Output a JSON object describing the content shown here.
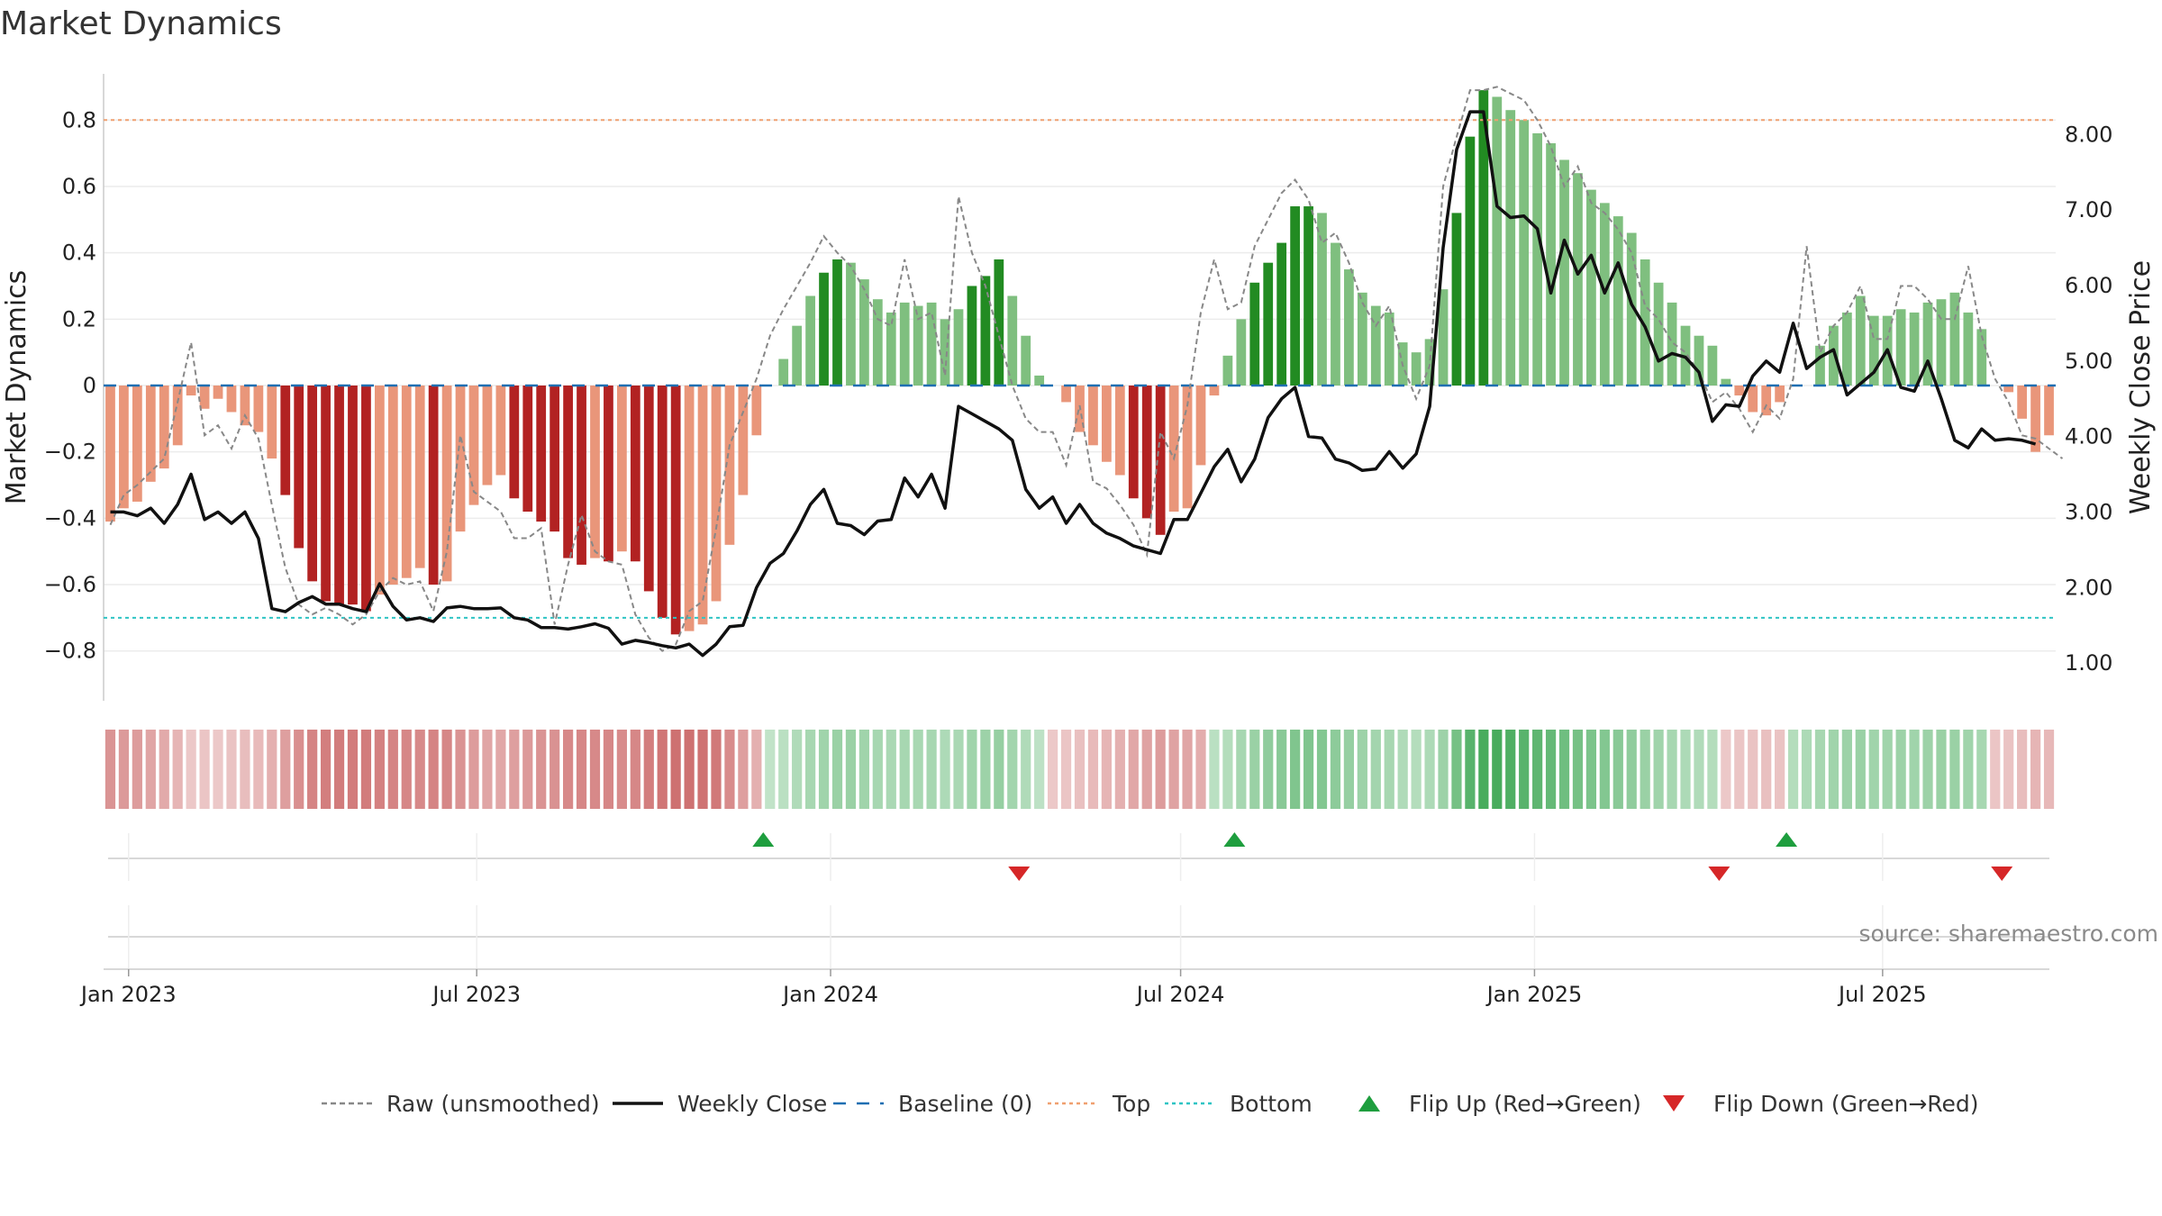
{
  "chart_data": {
    "type": "bar",
    "title": "Market Dynamics",
    "ylabel_left": "Market Dynamics",
    "ylabel_right": "Weekly Close Price",
    "source": "source: sharemaestro.com",
    "ylim_left": [
      -0.95,
      0.95
    ],
    "ylim_right": [
      0.5,
      8.85
    ],
    "yticks_left": [
      "0.8",
      "0.6",
      "0.4",
      "0.2",
      "0",
      "−0.2",
      "−0.4",
      "−0.6",
      "−0.8"
    ],
    "yticks_right": [
      "8.00",
      "7.00",
      "6.00",
      "5.00",
      "4.00",
      "3.00",
      "2.00",
      "1.00"
    ],
    "x_start": "2022-12-19",
    "x_end": "2025-09-29",
    "x_ticks": [
      {
        "date": "2023-01-01",
        "label": "Jan 2023"
      },
      {
        "date": "2023-07-01",
        "label": "Jul 2023"
      },
      {
        "date": "2024-01-01",
        "label": "Jan 2024"
      },
      {
        "date": "2024-07-01",
        "label": "Jul 2024"
      },
      {
        "date": "2025-01-01",
        "label": "Jan 2025"
      },
      {
        "date": "2025-07-01",
        "label": "Jul 2025"
      }
    ],
    "top_line": 0.8,
    "bottom_line": -0.7,
    "baseline": 0,
    "grid": true,
    "legend_position": "bottom",
    "legend": [
      {
        "label": "Raw (unsmoothed)",
        "kind": "dashed-line",
        "color": "#888888"
      },
      {
        "label": "Weekly Close",
        "kind": "line",
        "color": "#111111"
      },
      {
        "label": "Baseline (0)",
        "kind": "dash-line",
        "color": "#1f6fb2"
      },
      {
        "label": "Top",
        "kind": "dotted-line",
        "color": "#f0a070"
      },
      {
        "label": "Bottom",
        "kind": "dotted-line",
        "color": "#2ec4c4"
      },
      {
        "label": "Flip Up (Red→Green)",
        "kind": "triangle-up",
        "color": "#1e9e3e"
      },
      {
        "label": "Flip Down (Green→Red)",
        "kind": "triangle-down",
        "color": "#d62728"
      }
    ],
    "colors": {
      "strong_red": "#b22222",
      "light_red": "#e9967a",
      "strong_green": "#228b22",
      "light_green": "#7fbf7f",
      "raw": "#888888",
      "close": "#111111",
      "baseline": "#1f6fb2",
      "top": "#f0a070",
      "bottom": "#2ec4c4",
      "flip_up": "#1e9e3e",
      "flip_down": "#d62728"
    },
    "bars": [
      -0.41,
      -0.37,
      -0.35,
      -0.29,
      -0.25,
      -0.18,
      -0.03,
      -0.07,
      -0.04,
      -0.08,
      -0.12,
      -0.14,
      -0.22,
      -0.33,
      -0.49,
      -0.59,
      -0.65,
      -0.66,
      -0.66,
      -0.68,
      -0.63,
      -0.6,
      -0.58,
      -0.55,
      -0.6,
      -0.59,
      -0.44,
      -0.36,
      -0.3,
      -0.27,
      -0.34,
      -0.38,
      -0.41,
      -0.44,
      -0.52,
      -0.54,
      -0.52,
      -0.53,
      -0.5,
      -0.53,
      -0.62,
      -0.7,
      -0.75,
      -0.74,
      -0.72,
      -0.65,
      -0.48,
      -0.33,
      -0.15,
      0,
      0.08,
      0.18,
      0.27,
      0.34,
      0.38,
      0.37,
      0.32,
      0.26,
      0.22,
      0.25,
      0.24,
      0.25,
      0.2,
      0.23,
      0.3,
      0.33,
      0.38,
      0.27,
      0.15,
      0.03,
      0,
      -0.05,
      -0.14,
      -0.18,
      -0.23,
      -0.27,
      -0.34,
      -0.4,
      -0.45,
      -0.38,
      -0.37,
      -0.24,
      -0.03,
      0.09,
      0.2,
      0.31,
      0.37,
      0.43,
      0.54,
      0.54,
      0.52,
      0.43,
      0.35,
      0.28,
      0.24,
      0.22,
      0.13,
      0.1,
      0.14,
      0.29,
      0.52,
      0.75,
      0.89,
      0.87,
      0.83,
      0.8,
      0.76,
      0.73,
      0.68,
      0.64,
      0.59,
      0.55,
      0.51,
      0.46,
      0.38,
      0.31,
      0.25,
      0.18,
      0.15,
      0.12,
      0.02,
      -0.03,
      -0.08,
      -0.09,
      -0.05,
      0,
      0,
      0.12,
      0.18,
      0.22,
      0.27,
      0.21,
      0.21,
      0.23,
      0.22,
      0.25,
      0.26,
      0.28,
      0.22,
      0.17,
      0,
      -0.02,
      -0.1,
      -0.2,
      -0.15
    ],
    "raw": [
      -0.42,
      -0.33,
      -0.3,
      -0.26,
      -0.22,
      -0.05,
      0.13,
      -0.15,
      -0.12,
      -0.19,
      -0.09,
      -0.16,
      -0.36,
      -0.55,
      -0.66,
      -0.69,
      -0.67,
      -0.69,
      -0.72,
      -0.69,
      -0.62,
      -0.58,
      -0.6,
      -0.59,
      -0.68,
      -0.5,
      -0.15,
      -0.32,
      -0.35,
      -0.38,
      -0.46,
      -0.46,
      -0.43,
      -0.72,
      -0.54,
      -0.39,
      -0.5,
      -0.53,
      -0.54,
      -0.69,
      -0.76,
      -0.8,
      -0.78,
      -0.68,
      -0.65,
      -0.43,
      -0.18,
      -0.08,
      0.02,
      0.15,
      0.23,
      0.3,
      0.37,
      0.45,
      0.4,
      0.36,
      0.29,
      0.2,
      0.18,
      0.38,
      0.2,
      0.22,
      0.03,
      0.57,
      0.4,
      0.3,
      0.15,
      0.0,
      -0.1,
      -0.14,
      -0.14,
      -0.24,
      -0.06,
      -0.29,
      -0.31,
      -0.36,
      -0.42,
      -0.51,
      -0.14,
      -0.22,
      -0.06,
      0.22,
      0.38,
      0.23,
      0.25,
      0.42,
      0.5,
      0.58,
      0.62,
      0.56,
      0.43,
      0.46,
      0.37,
      0.25,
      0.18,
      0.24,
      0.06,
      -0.04,
      0.06,
      0.6,
      0.75,
      0.89,
      0.89,
      0.9,
      0.88,
      0.86,
      0.8,
      0.72,
      0.6,
      0.66,
      0.55,
      0.52,
      0.47,
      0.4,
      0.24,
      0.2,
      0.13,
      0.1,
      0.04,
      -0.05,
      -0.02,
      -0.07,
      -0.14,
      -0.06,
      -0.1,
      0.02,
      0.42,
      0.1,
      0.18,
      0.22,
      0.3,
      0.14,
      0.14,
      0.3,
      0.3,
      0.26,
      0.2,
      0.2,
      0.36,
      0.15,
      0.02,
      -0.05,
      -0.15,
      -0.16,
      -0.19,
      -0.22
    ],
    "close": [
      3.0,
      3.0,
      2.95,
      3.05,
      2.85,
      3.1,
      3.5,
      2.9,
      3.0,
      2.85,
      3.0,
      2.65,
      1.72,
      1.68,
      1.8,
      1.88,
      1.78,
      1.78,
      1.72,
      1.68,
      2.05,
      1.75,
      1.57,
      1.6,
      1.55,
      1.73,
      1.75,
      1.72,
      1.72,
      1.73,
      1.6,
      1.57,
      1.47,
      1.47,
      1.45,
      1.48,
      1.52,
      1.46,
      1.25,
      1.3,
      1.27,
      1.23,
      1.2,
      1.25,
      1.1,
      1.25,
      1.48,
      1.5,
      2.0,
      2.32,
      2.45,
      2.75,
      3.1,
      3.3,
      2.85,
      2.82,
      2.7,
      2.88,
      2.9,
      3.45,
      3.2,
      3.5,
      3.05,
      4.4,
      4.3,
      4.2,
      4.1,
      3.95,
      3.3,
      3.05,
      3.2,
      2.85,
      3.1,
      2.85,
      2.72,
      2.65,
      2.55,
      2.5,
      2.45,
      2.9,
      2.9,
      3.25,
      3.6,
      3.83,
      3.4,
      3.7,
      4.25,
      4.5,
      4.65,
      4.0,
      3.98,
      3.7,
      3.65,
      3.55,
      3.57,
      3.8,
      3.58,
      3.77,
      4.4,
      6.5,
      7.8,
      8.3,
      8.3,
      7.05,
      6.9,
      6.92,
      6.75,
      5.9,
      6.6,
      6.15,
      6.4,
      5.9,
      6.3,
      5.75,
      5.45,
      5.0,
      5.1,
      5.05,
      4.85,
      4.2,
      4.42,
      4.4,
      4.8,
      5.0,
      4.85,
      5.5,
      4.9,
      5.05,
      5.15,
      4.55,
      4.7,
      4.85,
      5.15,
      4.65,
      4.6,
      5.0,
      4.5,
      3.95,
      3.85,
      4.1,
      3.95,
      3.97,
      3.95,
      3.9
    ],
    "heat_values": [
      -0.5,
      -0.46,
      -0.44,
      -0.38,
      -0.34,
      -0.26,
      -0.12,
      -0.14,
      -0.12,
      -0.16,
      -0.2,
      -0.22,
      -0.3,
      -0.42,
      -0.54,
      -0.62,
      -0.66,
      -0.68,
      -0.68,
      -0.68,
      -0.64,
      -0.62,
      -0.6,
      -0.58,
      -0.62,
      -0.6,
      -0.5,
      -0.44,
      -0.38,
      -0.36,
      -0.42,
      -0.46,
      -0.5,
      -0.52,
      -0.58,
      -0.6,
      -0.58,
      -0.6,
      -0.56,
      -0.6,
      -0.66,
      -0.72,
      -0.76,
      -0.76,
      -0.74,
      -0.7,
      -0.56,
      -0.42,
      -0.3,
      0.1,
      0.14,
      0.2,
      0.26,
      0.3,
      0.34,
      0.34,
      0.3,
      0.26,
      0.24,
      0.26,
      0.25,
      0.26,
      0.22,
      0.24,
      0.3,
      0.32,
      0.36,
      0.28,
      0.2,
      0.12,
      -0.12,
      -0.14,
      -0.18,
      -0.22,
      -0.26,
      -0.3,
      -0.36,
      -0.4,
      -0.44,
      -0.4,
      -0.38,
      -0.32,
      0.14,
      0.18,
      0.26,
      0.34,
      0.4,
      0.44,
      0.5,
      0.5,
      0.48,
      0.42,
      0.36,
      0.32,
      0.28,
      0.26,
      0.2,
      0.18,
      0.22,
      0.32,
      0.56,
      0.74,
      0.84,
      0.84,
      0.8,
      0.74,
      0.7,
      0.66,
      0.6,
      0.56,
      0.52,
      0.48,
      0.44,
      0.4,
      0.34,
      0.3,
      0.26,
      0.22,
      0.2,
      0.18,
      -0.12,
      -0.14,
      -0.16,
      -0.18,
      -0.16,
      0.18,
      0.22,
      0.26,
      0.3,
      0.32,
      0.34,
      0.3,
      0.3,
      0.32,
      0.3,
      0.32,
      0.34,
      0.34,
      0.3,
      0.26,
      -0.14,
      -0.16,
      -0.2,
      -0.26,
      -0.24
    ],
    "flips_up": [
      "2023-11-27",
      "2024-07-29",
      "2025-05-12"
    ],
    "flips_down": [
      "2024-04-08",
      "2025-04-07",
      "2025-09-01"
    ]
  }
}
